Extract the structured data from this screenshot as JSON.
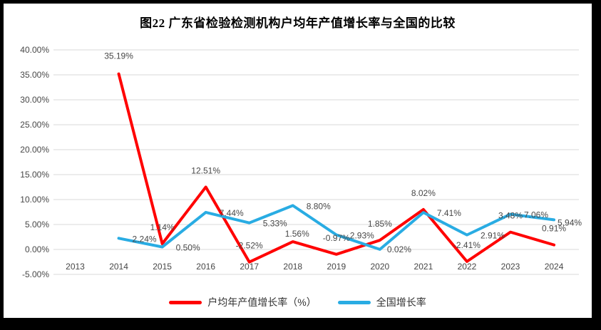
{
  "title": "图22  广东省检验检测机构户均年产值增长率与全国的比较",
  "chart_data": {
    "type": "line",
    "title": "图22  广东省检验检测机构户均年产值增长率与全国的比较",
    "categories": [
      2013,
      2014,
      2015,
      2016,
      2017,
      2018,
      2019,
      2020,
      2021,
      2022,
      2023,
      2024
    ],
    "series": [
      {
        "name": "户均年产值增长率（%）",
        "color": "#ff0000",
        "start_year": 2014,
        "values": [
          35.19,
          1.14,
          12.51,
          -2.52,
          1.56,
          -0.97,
          1.85,
          8.02,
          -2.41,
          3.48,
          0.91
        ]
      },
      {
        "name": "全国增长率",
        "color": "#29ace3",
        "start_year": 2014,
        "values": [
          2.24,
          0.5,
          7.44,
          5.33,
          8.8,
          2.93,
          0.02,
          7.41,
          2.91,
          7.06,
          5.94
        ]
      }
    ],
    "ylim": [
      -5,
      40
    ],
    "ytick_step": 5,
    "ytick_labels": [
      "40.00%",
      "35.00%",
      "30.00%",
      "25.00%",
      "20.00%",
      "15.00%",
      "10.00%",
      "5.00%",
      "0.00%",
      "-5.00%"
    ],
    "grid": "horizontal",
    "legend_position": "bottom",
    "data_labels": true,
    "colors": {
      "grid": "#d9d9d9",
      "text": "#474747"
    }
  }
}
